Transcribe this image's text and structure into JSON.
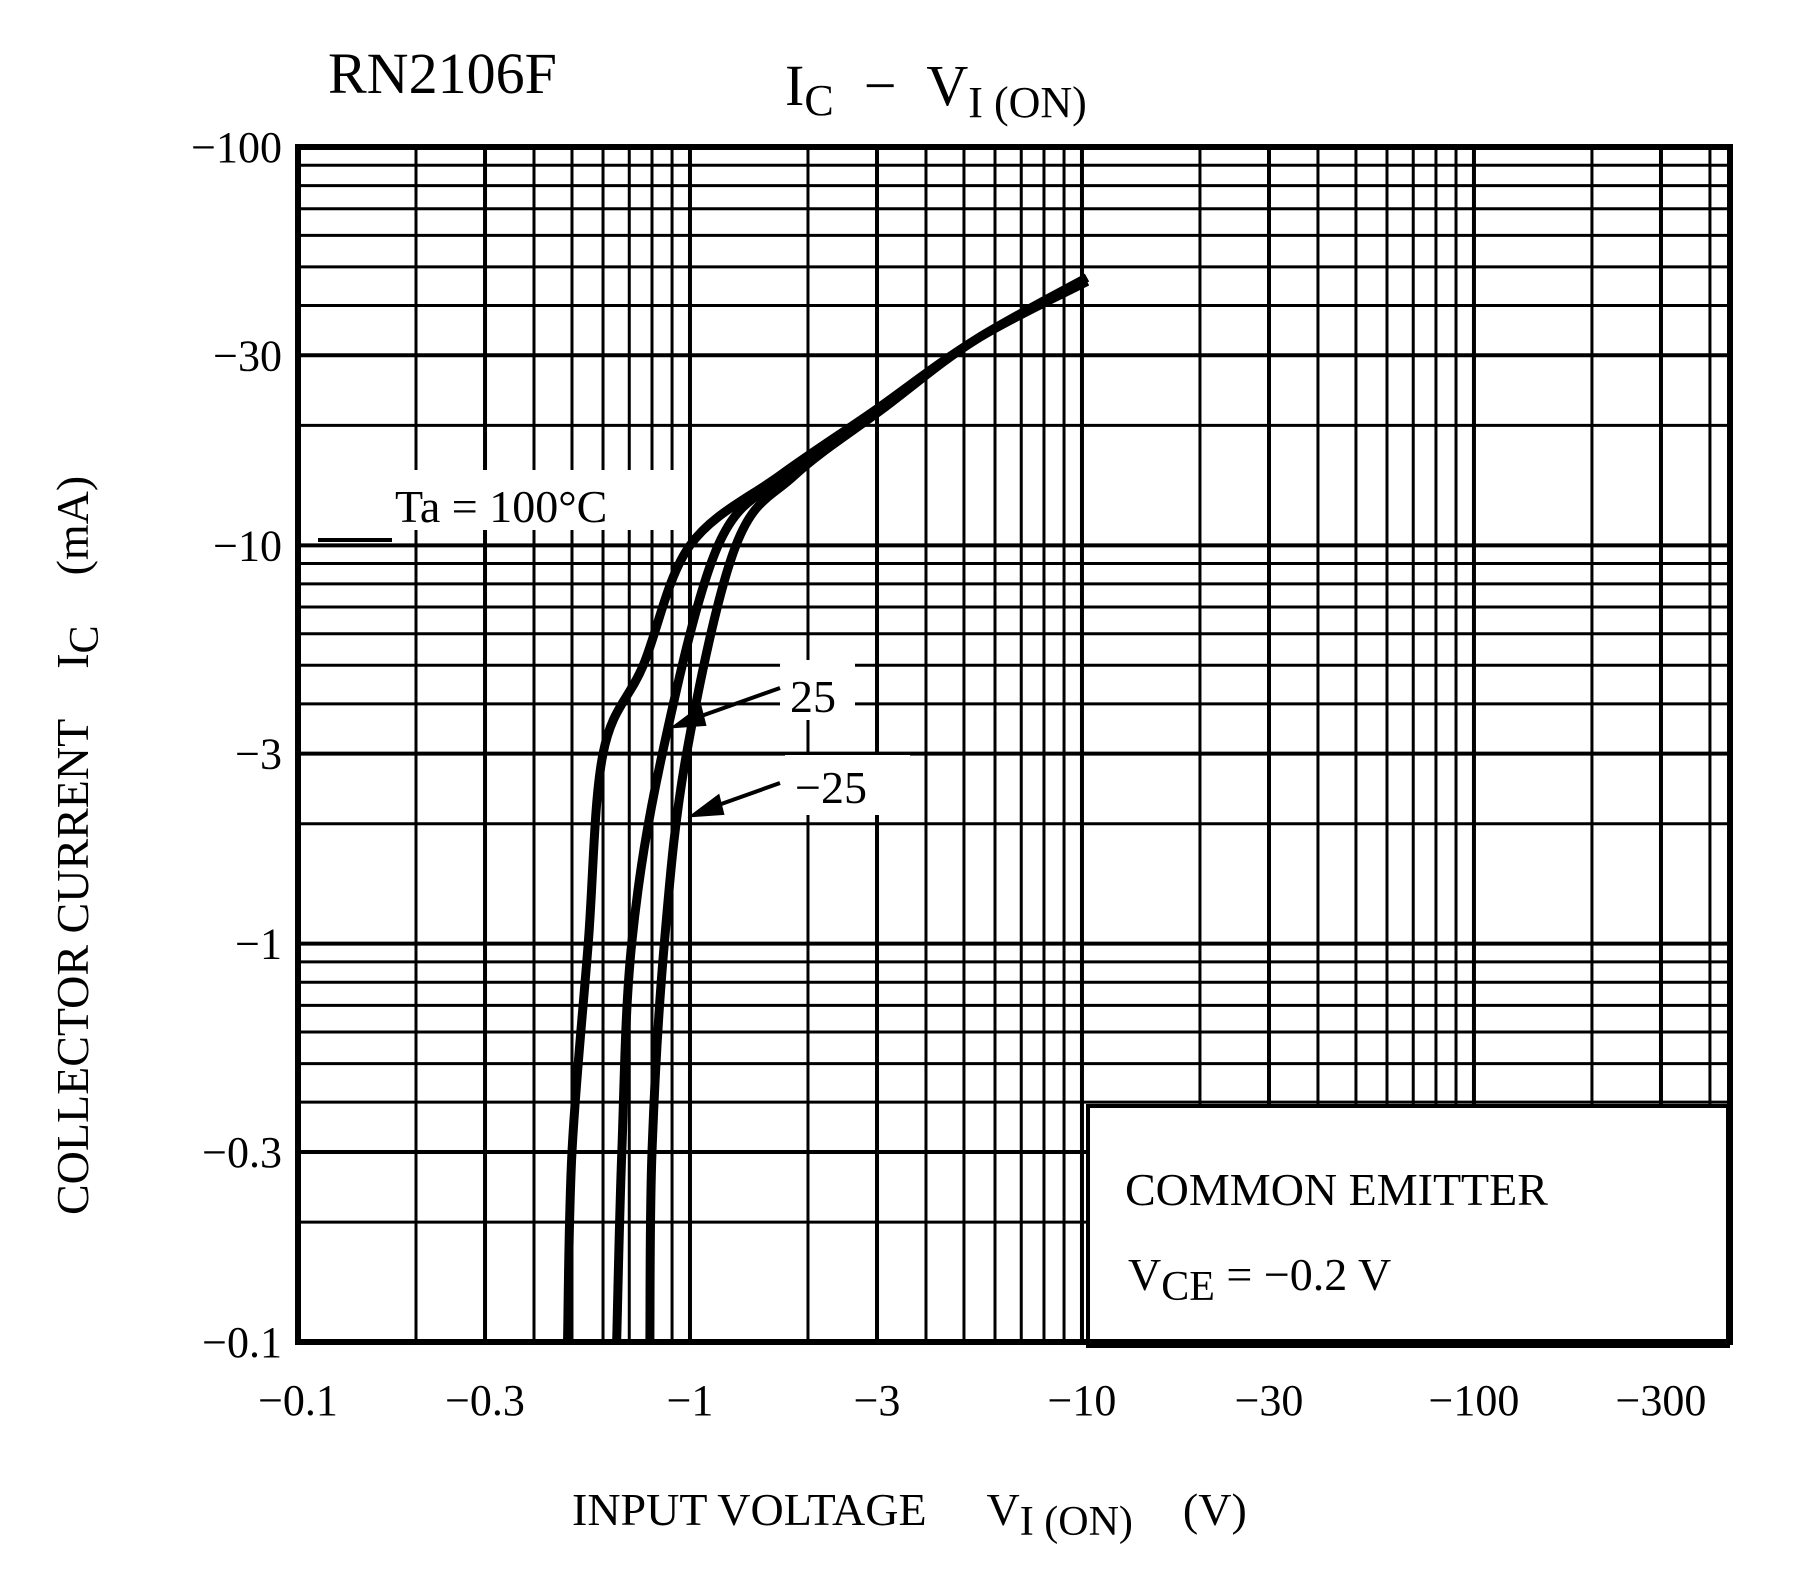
{
  "chart_data": {
    "type": "line",
    "title": "RN2106F",
    "subtitle": {
      "main": "I",
      "sub": "C",
      "dash": "−",
      "main2": "V",
      "sub2": "I (ON)"
    },
    "xlabel": {
      "text": "INPUT VOLTAGE",
      "sym": "V",
      "sub": "I (ON)",
      "unit": "(V)"
    },
    "ylabel": {
      "text": "COLLECTOR CURRENT",
      "sym": "I",
      "sub": "C",
      "unit": "(mA)"
    },
    "x_scale": "log",
    "y_scale": "log",
    "xlim": [
      -0.1,
      -450
    ],
    "ylim": [
      -0.1,
      -100
    ],
    "grid": true,
    "x_ticks": [
      {
        "value": -0.1,
        "label": "−0.1"
      },
      {
        "value": -0.3,
        "label": "−0.3"
      },
      {
        "value": -1,
        "label": "−1"
      },
      {
        "value": -3,
        "label": "−3"
      },
      {
        "value": -10,
        "label": "−10"
      },
      {
        "value": -30,
        "label": "−30"
      },
      {
        "value": -100,
        "label": "−100"
      },
      {
        "value": -300,
        "label": "−300"
      }
    ],
    "y_ticks": [
      {
        "value": -100,
        "label": "−100"
      },
      {
        "value": -30,
        "label": "−30"
      },
      {
        "value": -10,
        "label": "−10"
      },
      {
        "value": -3,
        "label": "−3"
      },
      {
        "value": -1,
        "label": "−1"
      },
      {
        "value": -0.3,
        "label": "−0.3"
      },
      {
        "value": -0.1,
        "label": "−0.1"
      }
    ],
    "series": [
      {
        "name": "Ta = 100°C",
        "x": [
          -0.487,
          -0.5,
          -0.55,
          -0.6,
          -0.76,
          -1.0,
          -1.7,
          -3.0,
          -5.4,
          -10.3
        ],
        "y": [
          -0.1,
          -0.3,
          -1,
          -3,
          -5,
          -10,
          -15,
          -22,
          -33,
          -47
        ]
      },
      {
        "name": "25",
        "x": [
          -0.65,
          -0.67,
          -0.71,
          -0.85,
          -1.18,
          -1.75,
          -3.0,
          -5.4,
          -10.3
        ],
        "y": [
          -0.1,
          -0.3,
          -1,
          -3,
          -10,
          -15,
          -22,
          -33,
          -46
        ]
      },
      {
        "name": "−25",
        "x": [
          -0.79,
          -0.8,
          -0.86,
          -0.98,
          -1.31,
          -1.85,
          -3.1,
          -5.4,
          -10.3
        ],
        "y": [
          -0.1,
          -0.3,
          -1,
          -3,
          -10,
          -15,
          -22,
          -33,
          -46
        ]
      }
    ],
    "annotation": {
      "line1": "COMMON  EMITTER",
      "sym": "V",
      "sub": "CE",
      "value": " =  −0.2 V"
    }
  }
}
